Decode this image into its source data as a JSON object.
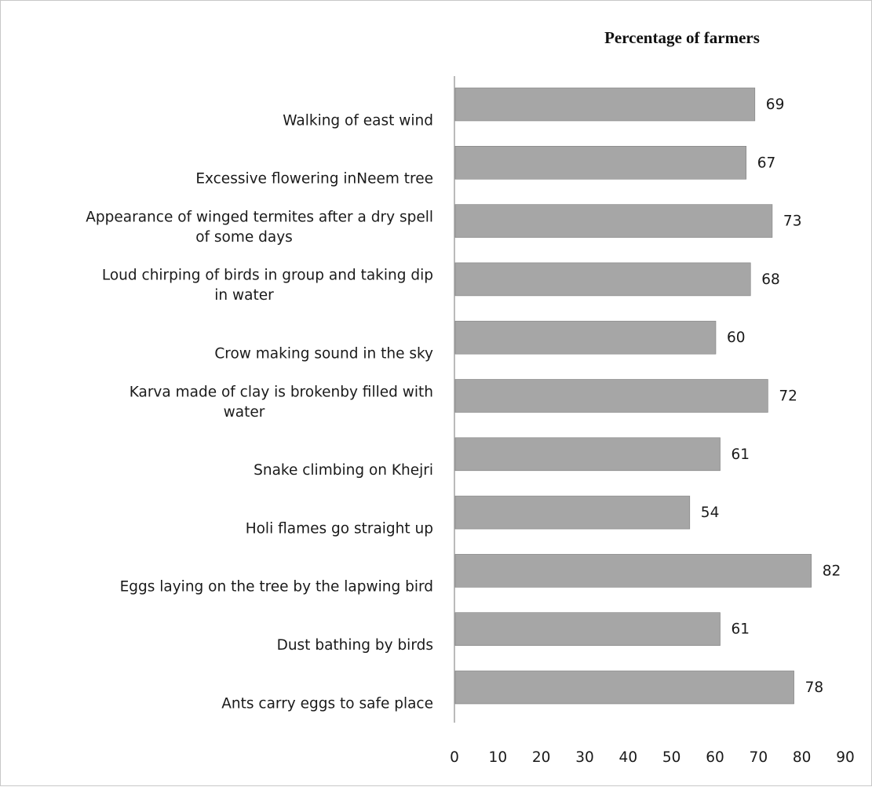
{
  "chart_data": {
    "type": "bar",
    "orientation": "horizontal",
    "title": "Percentage of farmers",
    "categories": [
      [
        "Walking of east wind"
      ],
      [
        "Excessive flowering inNeem tree"
      ],
      [
        "Appearance of winged termites after a dry spell",
        "of some days"
      ],
      [
        "Loud chirping of birds in group and taking dip",
        "in water"
      ],
      [
        "Crow making sound in the sky"
      ],
      [
        "Karva made of clay is brokenby filled with",
        "water"
      ],
      [
        "Snake climbing on Khejri"
      ],
      [
        "Holi flames go straight up"
      ],
      [
        "Eggs laying on the tree by the lapwing bird"
      ],
      [
        "Dust bathing by birds"
      ],
      [
        "Ants carry eggs to safe place"
      ]
    ],
    "values": [
      69,
      67,
      73,
      68,
      60,
      72,
      61,
      54,
      82,
      61,
      78
    ],
    "xlim": [
      0,
      90
    ],
    "xticks": [
      0,
      10,
      20,
      30,
      40,
      50,
      60,
      70,
      80,
      90
    ],
    "data_labels": true,
    "grid": false,
    "legend": "none",
    "bar_color": "#a6a6a6",
    "bar_edge_color": "#808080"
  }
}
